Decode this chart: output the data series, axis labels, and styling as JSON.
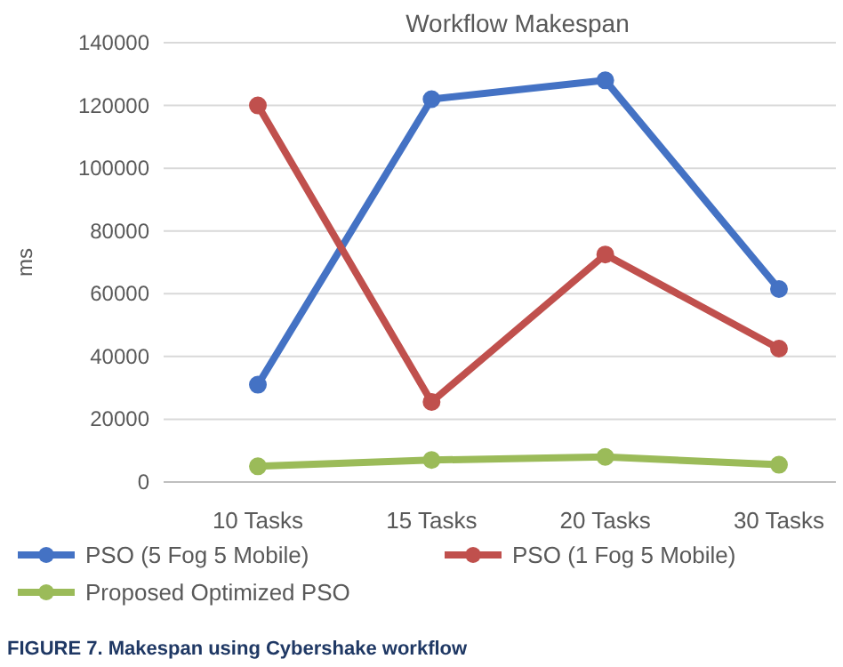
{
  "chart_data": {
    "type": "line",
    "title": "Workflow Makespan",
    "ylabel": "ms",
    "categories": [
      "10 Tasks",
      "15 Tasks",
      "20 Tasks",
      "30 Tasks"
    ],
    "series": [
      {
        "name": "PSO (5 Fog 5 Mobile)",
        "color": "#4472c4",
        "values": [
          31000,
          122000,
          128000,
          61500
        ]
      },
      {
        "name": "PSO (1 Fog 5 Mobile)",
        "color": "#c0504d",
        "values": [
          120000,
          25500,
          72500,
          42500
        ]
      },
      {
        "name": "Proposed Optimized PSO",
        "color": "#9bbb59",
        "values": [
          5000,
          7000,
          8000,
          5500
        ]
      }
    ],
    "ylim": [
      0,
      140000
    ],
    "yticks": [
      0,
      20000,
      40000,
      60000,
      80000,
      100000,
      120000,
      140000
    ],
    "grid": "y",
    "legend": "bottom",
    "marker": "circle",
    "line_style": "solid",
    "annotations": [
      "FIGURE 7. Makespan using Cybershake workflow"
    ]
  }
}
